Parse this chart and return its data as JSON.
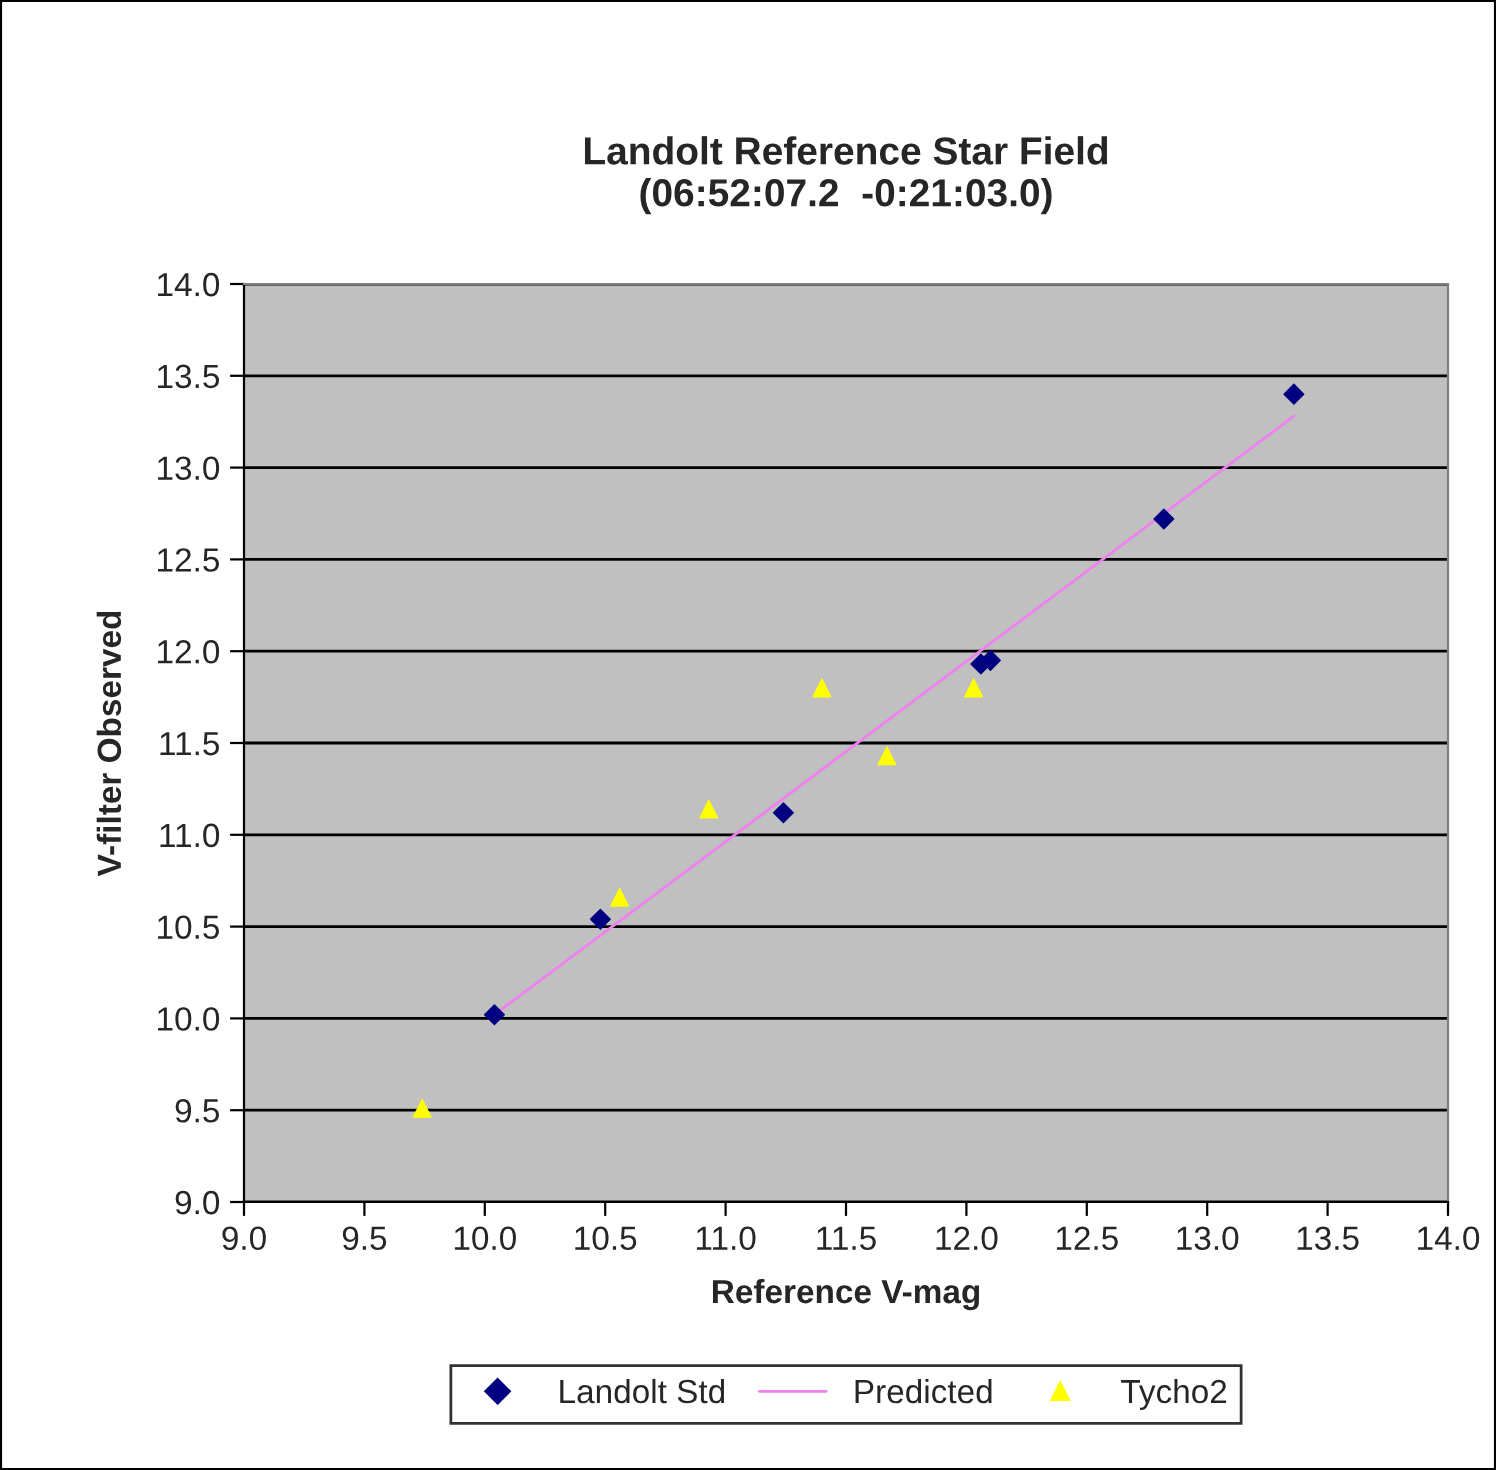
{
  "chart_data": {
    "type": "scatter",
    "title": "Landolt Reference Star Field\n(06:52:07.2  -0:21:03.0)",
    "xlabel": "Reference V-mag",
    "ylabel": "V-filter Observed",
    "xlim": [
      9.0,
      14.0
    ],
    "xticks": [
      {
        "value": 9.0,
        "label": "9.0"
      },
      {
        "value": 9.5,
        "label": "9.5"
      },
      {
        "value": 10.0,
        "label": "10.0"
      },
      {
        "value": 10.5,
        "label": "10.5"
      },
      {
        "value": 11.0,
        "label": "11.0"
      },
      {
        "value": 11.5,
        "label": "11.5"
      },
      {
        "value": 12.0,
        "label": "12.0"
      },
      {
        "value": 12.5,
        "label": "12.5"
      },
      {
        "value": 13.0,
        "label": "13.0"
      },
      {
        "value": 13.5,
        "label": "13.5"
      },
      {
        "value": 14.0,
        "label": "14.0"
      }
    ],
    "ylim": [
      9.0,
      14.0
    ],
    "yticks": [
      {
        "value": 9.0,
        "label": "9.0"
      },
      {
        "value": 9.5,
        "label": "9.5"
      },
      {
        "value": 10.0,
        "label": "10.0"
      },
      {
        "value": 10.5,
        "label": "10.5"
      },
      {
        "value": 11.0,
        "label": "11.0"
      },
      {
        "value": 11.5,
        "label": "11.5"
      },
      {
        "value": 12.0,
        "label": "12.0"
      },
      {
        "value": 12.5,
        "label": "12.5"
      },
      {
        "value": 13.0,
        "label": "13.0"
      },
      {
        "value": 13.5,
        "label": "13.5"
      },
      {
        "value": 14.0,
        "label": "14.0"
      }
    ],
    "grid": "y",
    "legend": "bottom",
    "series": [
      {
        "name": "Landolt Std",
        "marker": "diamond",
        "color": "#000080",
        "x": [
          10.04,
          10.48,
          11.24,
          12.06,
          12.1,
          12.82,
          13.36
        ],
        "values": [
          10.02,
          10.54,
          11.12,
          11.93,
          11.95,
          12.72,
          13.4
        ]
      },
      {
        "name": "Predicted",
        "type": "line",
        "marker": "none",
        "line_style": "solid",
        "color": "#ee82ee",
        "x": [
          10.04,
          13.36
        ],
        "values": [
          10.02,
          13.28
        ]
      },
      {
        "name": "Tycho2",
        "marker": "triangle",
        "color": "#ffff00",
        "x": [
          9.74,
          10.56,
          10.93,
          11.4,
          11.67,
          12.03
        ],
        "values": [
          9.51,
          10.66,
          11.14,
          11.8,
          11.43,
          11.8
        ]
      }
    ]
  }
}
